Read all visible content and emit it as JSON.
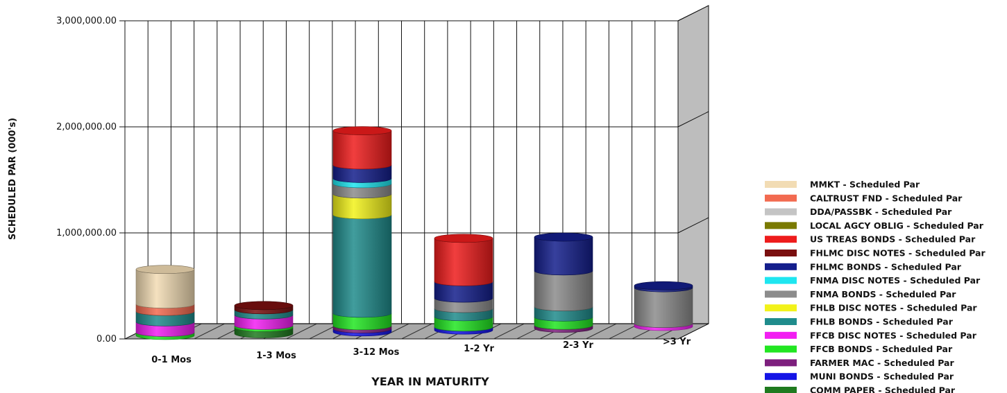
{
  "chart_data": {
    "type": "bar",
    "stacked": true,
    "style": "3d-cylinder",
    "title": "",
    "xlabel": "YEAR IN MATURITY",
    "ylabel": "SCHEDULED PAR (000's)",
    "ylim": [
      0,
      3000000
    ],
    "yticks": [
      0,
      1000000,
      2000000,
      3000000
    ],
    "ytick_labels": [
      "0.00",
      "1,000,000.00",
      "2,000,000.00",
      "3,000,000.00"
    ],
    "grid": true,
    "legend_position": "right",
    "categories": [
      "0-1 Mos",
      "1-3 Mos",
      "3-12 Mos",
      "1-2 Yr",
      "2-3 Yr",
      ">3 Yr"
    ],
    "series": [
      {
        "name": "COMM PAPER - Scheduled Par",
        "color": "#1f7a1f",
        "values": [
          0,
          60000,
          0,
          0,
          0,
          0
        ]
      },
      {
        "name": "MUNI BONDS - Scheduled Par",
        "color": "#1414e6",
        "values": [
          0,
          0,
          30000,
          30000,
          0,
          0
        ]
      },
      {
        "name": "FARMER MAC - Scheduled Par",
        "color": "#7d1f7d",
        "values": [
          0,
          0,
          30000,
          0,
          30000,
          0
        ]
      },
      {
        "name": "FFCB BONDS - Scheduled Par",
        "color": "#22e622",
        "values": [
          30000,
          20000,
          120000,
          100000,
          80000,
          0
        ]
      },
      {
        "name": "FFCB DISC NOTES - Scheduled Par",
        "color": "#f21ef2",
        "values": [
          100000,
          100000,
          0,
          0,
          0,
          30000
        ]
      },
      {
        "name": "FHLB BONDS - Scheduled Par",
        "color": "#1f8c8c",
        "values": [
          100000,
          50000,
          950000,
          80000,
          100000,
          0
        ]
      },
      {
        "name": "FHLB DISC NOTES - Scheduled Par",
        "color": "#f2f21a",
        "values": [
          0,
          0,
          200000,
          0,
          0,
          0
        ]
      },
      {
        "name": "FNMA BONDS - Scheduled Par",
        "color": "#8c8c8c",
        "values": [
          0,
          0,
          100000,
          100000,
          350000,
          350000
        ]
      },
      {
        "name": "FNMA DISC NOTES - Scheduled Par",
        "color": "#1ee6f0",
        "values": [
          0,
          0,
          50000,
          0,
          0,
          0
        ]
      },
      {
        "name": "FHLMC BONDS - Scheduled Par",
        "color": "#141e8c",
        "values": [
          0,
          0,
          130000,
          160000,
          330000,
          20000
        ]
      },
      {
        "name": "FHLMC DISC NOTES - Scheduled Par",
        "color": "#7a0f0f",
        "values": [
          0,
          40000,
          0,
          0,
          0,
          0
        ]
      },
      {
        "name": "US TREAS BONDS - Scheduled Par",
        "color": "#ee1c1c",
        "values": [
          0,
          0,
          330000,
          420000,
          0,
          0
        ]
      },
      {
        "name": "LOCAL AGCY OBLIG - Scheduled Par",
        "color": "#7a7a00",
        "values": [
          0,
          0,
          0,
          0,
          0,
          0
        ]
      },
      {
        "name": "DDA/PASSBK - Scheduled Par",
        "color": "#c4c4c4",
        "values": [
          0,
          0,
          0,
          0,
          0,
          0
        ]
      },
      {
        "name": "CALTRUST FND - Scheduled Par",
        "color": "#f26a50",
        "values": [
          70000,
          0,
          0,
          0,
          0,
          0
        ]
      },
      {
        "name": "MMKT - Scheduled Par",
        "color": "#f2dcb4",
        "values": [
          330000,
          0,
          0,
          0,
          0,
          0
        ]
      }
    ]
  }
}
